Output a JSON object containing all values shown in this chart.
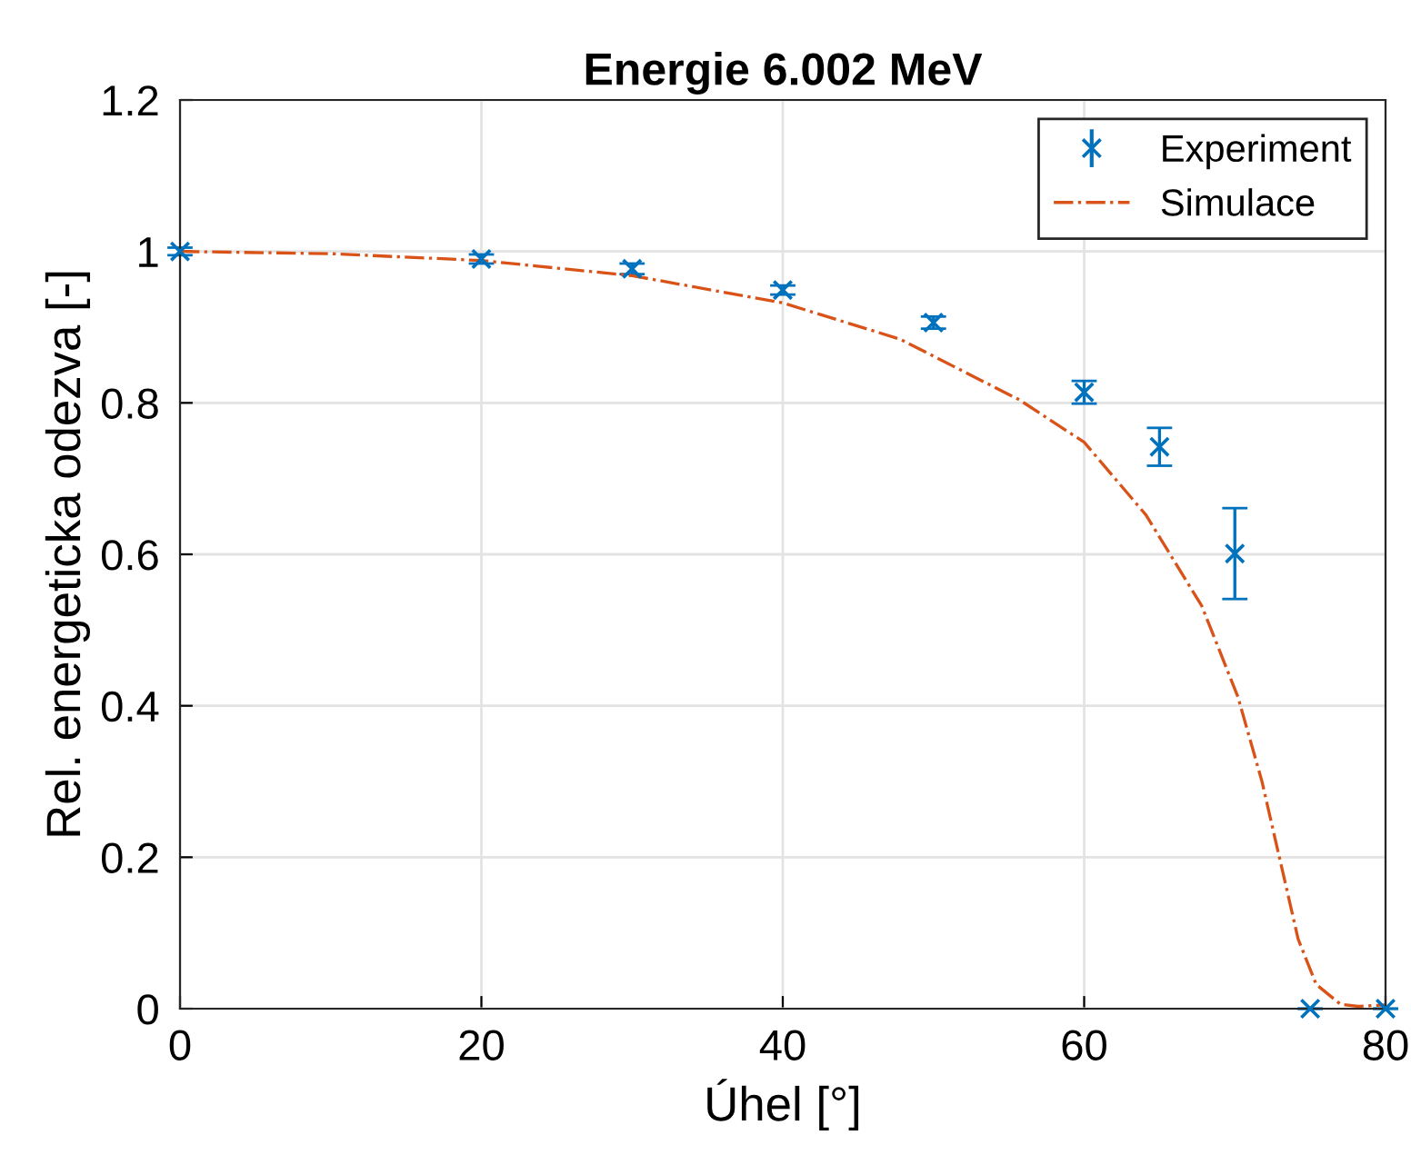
{
  "chart_data": {
    "type": "scatter",
    "title": "Energie 6.002 MeV",
    "xlabel": "Úhel [°]",
    "ylabel": "Rel. energeticka odezva [-]",
    "xlim": [
      0,
      80
    ],
    "ylim": [
      0,
      1.2
    ],
    "xticks": [
      0,
      20,
      40,
      60,
      80
    ],
    "yticks": [
      0,
      0.2,
      0.4,
      0.6,
      0.8,
      1,
      1.2
    ],
    "grid": true,
    "legend": "top right",
    "series": [
      {
        "name": "Experiment",
        "color": "#0072bd",
        "marker": "cross",
        "x": [
          0,
          20,
          30,
          40,
          50,
          60,
          65,
          70,
          75,
          80
        ],
        "values": [
          1.0,
          0.99,
          0.977,
          0.949,
          0.906,
          0.814,
          0.742,
          0.601,
          0.0,
          0.0
        ],
        "errors": [
          0.005,
          0.006,
          0.007,
          0.006,
          0.008,
          0.015,
          0.025,
          0.06,
          null,
          null
        ]
      },
      {
        "name": "Simulace",
        "type": "line",
        "color": "#d95319",
        "marker": "none",
        "line_style": "dashdot",
        "x": [
          0,
          10,
          20,
          30,
          40,
          47.8,
          55.7,
          60,
          64.1,
          67.8,
          70.2,
          71.8,
          73,
          74.2,
          75.4,
          77,
          78.2,
          80
        ],
        "values": [
          1.0,
          0.997,
          0.988,
          0.968,
          0.932,
          0.884,
          0.804,
          0.748,
          0.652,
          0.532,
          0.412,
          0.3,
          0.196,
          0.092,
          0.032,
          0.006,
          0.003,
          0.005
        ]
      }
    ]
  }
}
